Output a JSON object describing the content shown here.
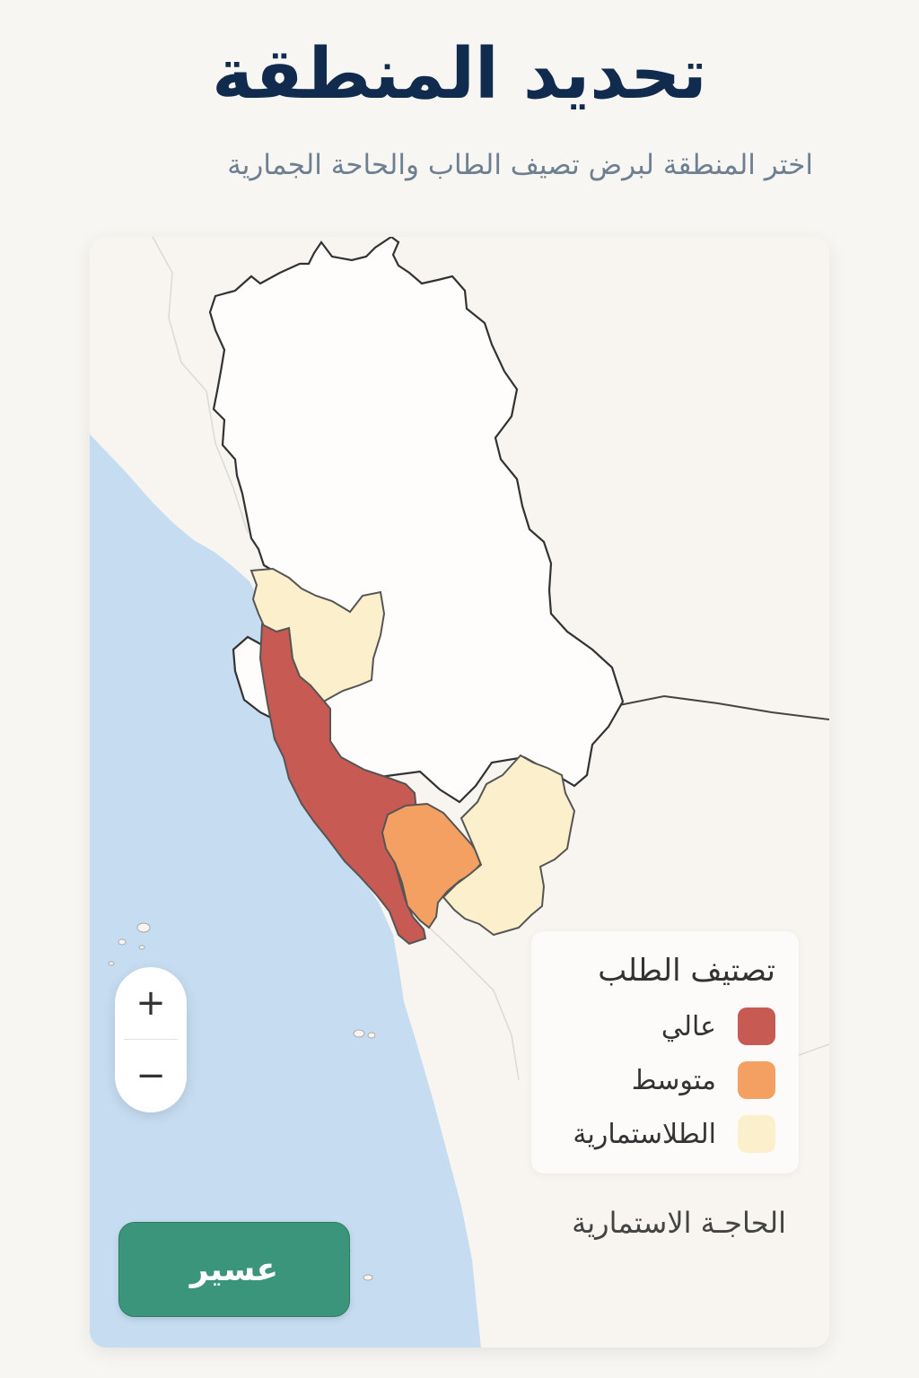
{
  "header": {
    "title": "تحديد المنطقة",
    "subtitle": "اختر المنطقة لبرض تصيف الطاب والحاحة الجمارية"
  },
  "map": {
    "colors": {
      "sea": "#c6ddf1",
      "land": "#f8f5f0",
      "selected_region": "#fefdfb",
      "border": "#333333",
      "high": "#c75a52",
      "medium": "#f3a062",
      "low": "#fcefcc"
    },
    "zoom": {
      "in_label": "+",
      "out_label": "−"
    }
  },
  "legend": {
    "title": "تصتيف الطلب",
    "items": [
      {
        "label": "عالي",
        "color": "#c75a52"
      },
      {
        "label": "متوسط",
        "color": "#f3a062"
      },
      {
        "label": "الطلاستمارية",
        "color": "#fcefcc"
      }
    ]
  },
  "need_label": "الحاجـة الاستمارية",
  "region_button": {
    "label": "عسير"
  }
}
